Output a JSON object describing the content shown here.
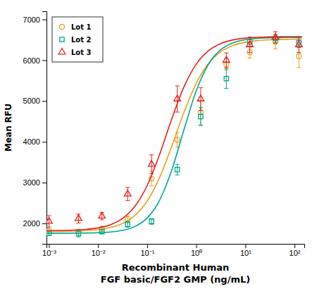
{
  "chart_data": {
    "type": "scatter",
    "xlabel": "Recombinant Human\nFGF basic/FGF2 GMP (ng/mL)",
    "ylabel": "Mean RFU",
    "log": "x",
    "grid": false,
    "legend": "upper left",
    "xlim": [
      0.00089125,
      158.49
    ],
    "xticks": [
      {
        "value": 0.001,
        "label": "10⁻³"
      },
      {
        "value": 0.01,
        "label": "10⁻²"
      },
      {
        "value": 0.1,
        "label": "10⁻¹"
      },
      {
        "value": 1,
        "label": "10⁰"
      },
      {
        "value": 10,
        "label": "10¹"
      },
      {
        "value": 100,
        "label": "10²"
      }
    ],
    "ylim": [
      1500,
      7200
    ],
    "yticks": [
      2000,
      3000,
      4000,
      5000,
      6000,
      7000
    ],
    "series": [
      {
        "type": "line",
        "color": "#E8A020",
        "x": [
          0.00089125,
          0.001,
          0.0017783,
          0.0031623,
          0.0056234,
          0.01,
          0.017783,
          0.031623,
          0.056234,
          0.1,
          0.17783,
          0.31623,
          0.56234,
          1,
          1.7783,
          3.1623,
          5.6234,
          10,
          17.783,
          31.623,
          56.234,
          100,
          141.25
        ],
        "values": [
          1802.4,
          1802.8,
          1805.8,
          1811.8,
          1824.2,
          1849.5,
          1900.5,
          2002,
          2196.8,
          2548.6,
          3117.2,
          3890.3,
          4726.9,
          5435.4,
          5921.3,
          6208.2,
          6362.8,
          6442.1,
          6481.8,
          6501.3,
          6510.9,
          6515.5,
          6517.1
        ]
      },
      {
        "type": "scatter",
        "name": "Lot 1",
        "color": "#E8A020",
        "marker": "circle",
        "x": [
          0.001,
          0.004,
          0.012,
          0.04,
          0.123,
          0.41,
          1.23,
          4.1,
          12.3,
          41,
          123
        ],
        "values": [
          1820,
          1800,
          1870,
          2100,
          3100,
          4050,
          4720,
          5900,
          6200,
          6450,
          6100
        ],
        "errors": [
          50,
          40,
          60,
          80,
          180,
          180,
          300,
          150,
          150,
          170,
          280
        ]
      },
      {
        "type": "line",
        "color": "#00A88A",
        "x": [
          0.00089125,
          0.001,
          0.0017783,
          0.0031623,
          0.0056234,
          0.01,
          0.017783,
          0.031623,
          0.056234,
          0.1,
          0.17783,
          0.31623,
          0.56234,
          1,
          1.7783,
          3.1623,
          5.6234,
          10,
          17.783,
          31.623,
          56.234,
          100,
          141.25
        ],
        "values": [
          1760.3,
          1760.4,
          1761.0,
          1762.3,
          1765.4,
          1772.8,
          1790.2,
          1830.9,
          1924.8,
          2133.3,
          2560.0,
          3304.1,
          4300.9,
          5251.0,
          5904.7,
          6260.0,
          6428.7,
          6503.8,
          6536.1,
          6549.9,
          6555.7,
          6558.2,
          6558.9
        ]
      },
      {
        "type": "scatter",
        "name": "Lot 2",
        "color": "#00A88A",
        "marker": "square",
        "x": [
          0.001,
          0.004,
          0.012,
          0.04,
          0.123,
          0.41,
          1.23,
          4.1,
          12.3,
          41,
          123
        ],
        "values": [
          1760,
          1750,
          1800,
          1980,
          2050,
          3320,
          4620,
          5550,
          6450,
          6530,
          6430
        ],
        "errors": [
          60,
          80,
          50,
          70,
          70,
          130,
          220,
          240,
          110,
          100,
          120
        ]
      },
      {
        "type": "line",
        "color": "#E82020",
        "x": [
          0.00089125,
          0.001,
          0.0017783,
          0.0031623,
          0.0056234,
          0.01,
          0.017783,
          0.031623,
          0.056234,
          0.1,
          0.17783,
          0.31623,
          0.56234,
          1,
          1.7783,
          3.1623,
          5.6234,
          10,
          17.783,
          31.623,
          56.234,
          100,
          141.25
        ],
        "values": [
          1823.1,
          1823.6,
          1827.7,
          1836.2,
          1854.0,
          1891.4,
          1968.4,
          2123.2,
          2418.3,
          2929.3,
          3681.4,
          4560.7,
          5349.6,
          5906.0,
          6235.4,
          6410.5,
          6498.3,
          6541.0,
          6561.5,
          6571.2,
          6575.8,
          6578.0,
          6578.7
        ]
      },
      {
        "type": "scatter",
        "name": "Lot 3",
        "color": "#E82020",
        "marker": "triangle",
        "x": [
          0.001,
          0.004,
          0.012,
          0.04,
          0.123,
          0.41,
          1.23,
          4.1,
          12.3,
          41,
          123
        ],
        "values": [
          2050,
          2120,
          2180,
          2720,
          3450,
          5050,
          5050,
          6000,
          6380,
          6560,
          6380
        ],
        "errors": [
          140,
          110,
          90,
          160,
          230,
          320,
          280,
          180,
          190,
          140,
          190
        ]
      }
    ]
  }
}
